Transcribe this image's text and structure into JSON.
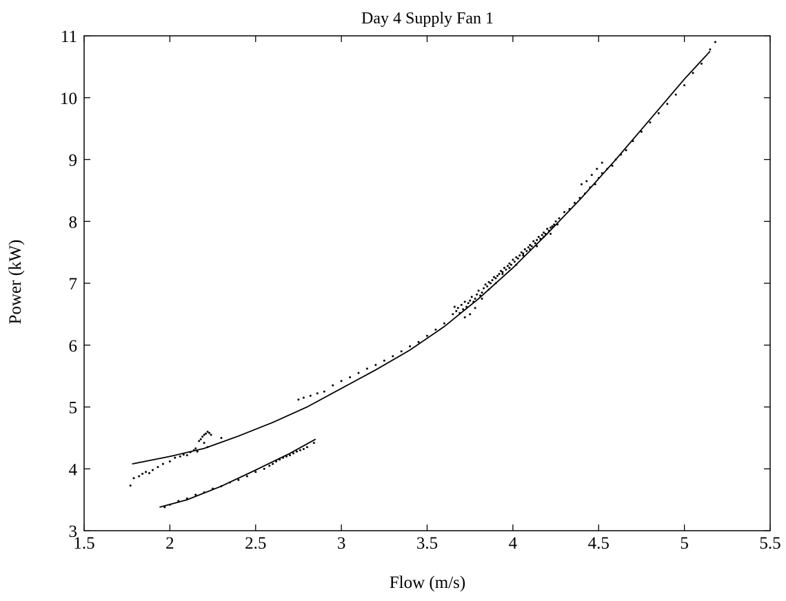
{
  "chart_data": {
    "type": "scatter",
    "title": "Day 4 Supply Fan 1",
    "xlabel": "Flow (m/s)",
    "ylabel": "Power (kW)",
    "xlim": [
      1.5,
      5.5
    ],
    "ylim": [
      3,
      11
    ],
    "xticks": [
      "1.5",
      "2",
      "2.5",
      "3",
      "3.5",
      "4",
      "4.5",
      "5",
      "5.5"
    ],
    "yticks": [
      "3",
      "4",
      "5",
      "6",
      "7",
      "8",
      "9",
      "10",
      "11"
    ],
    "grid": false,
    "legend": "none",
    "colors": {
      "line": "#000000",
      "points": "#000000",
      "background": "#ffffff"
    },
    "series": [
      {
        "kind": "line",
        "x": [
          1.78,
          2.0,
          2.2,
          2.4,
          2.6,
          2.8,
          3.0,
          3.2,
          3.4,
          3.6,
          3.8,
          4.0,
          4.2,
          4.4,
          4.6,
          4.8,
          5.0,
          5.15
        ],
        "y": [
          4.08,
          4.2,
          4.33,
          4.53,
          4.75,
          5.0,
          5.3,
          5.6,
          5.92,
          6.3,
          6.75,
          7.25,
          7.8,
          8.38,
          9.0,
          9.65,
          10.3,
          10.75
        ]
      },
      {
        "kind": "line",
        "x": [
          1.94,
          2.1,
          2.3,
          2.5,
          2.7,
          2.85
        ],
        "y": [
          3.38,
          3.5,
          3.72,
          3.98,
          4.25,
          4.48
        ]
      },
      {
        "kind": "scatter",
        "x": [
          1.77,
          1.79,
          1.82,
          1.84,
          1.86,
          1.88,
          1.9,
          1.93,
          1.96,
          2.0,
          2.03,
          2.06,
          2.08,
          2.1,
          2.12,
          2.14,
          2.15,
          2.16,
          2.17,
          2.18,
          2.19,
          2.2,
          2.21,
          2.22,
          2.23,
          2.24,
          2.3,
          2.2,
          2.22,
          2.75,
          2.78,
          2.82,
          2.86,
          2.9,
          2.95,
          3.0,
          3.05,
          3.1,
          3.15,
          3.2,
          3.25,
          3.3,
          3.35,
          3.4,
          3.45,
          3.5,
          3.55,
          3.6,
          3.65,
          3.66,
          3.67,
          3.68,
          3.69,
          3.7,
          3.71,
          3.72,
          3.73,
          3.74,
          3.75,
          3.76,
          3.77,
          3.78,
          3.79,
          3.8,
          3.81,
          3.82,
          3.83,
          3.84,
          3.85,
          3.86,
          3.87,
          3.88,
          3.89,
          3.9,
          3.91,
          3.92,
          3.93,
          3.94,
          3.95,
          3.96,
          3.97,
          3.98,
          3.99,
          4.0,
          4.01,
          4.02,
          4.03,
          4.04,
          4.05,
          4.06,
          4.07,
          4.08,
          4.09,
          4.1,
          4.11,
          4.12,
          4.13,
          4.14,
          4.15,
          4.16,
          4.17,
          4.18,
          4.19,
          4.2,
          4.21,
          4.22,
          4.23,
          4.24,
          4.25,
          4.27,
          4.3,
          4.33,
          4.36,
          4.39,
          4.42,
          4.45,
          4.48,
          4.5,
          4.52,
          4.55,
          4.58,
          4.6,
          4.63,
          4.66,
          4.7,
          4.75,
          4.8,
          4.85,
          4.9,
          4.95,
          5.0,
          5.05,
          5.1,
          5.15,
          5.18,
          3.72,
          3.75,
          3.78,
          3.82,
          3.86,
          3.9,
          3.94,
          3.98,
          4.02,
          4.06,
          4.1,
          4.14,
          4.18,
          4.22,
          4.26,
          4.4,
          4.43,
          4.46,
          4.49,
          4.52,
          1.97,
          2.0,
          2.05,
          2.1,
          2.15,
          2.2,
          2.25,
          2.3,
          2.35,
          2.4,
          2.45,
          2.5,
          2.55,
          2.58,
          2.6,
          2.62,
          2.64,
          2.66,
          2.68,
          2.7,
          2.72,
          2.74,
          2.76,
          2.78,
          2.8,
          2.84
        ],
        "y": [
          3.73,
          3.85,
          3.88,
          3.92,
          3.95,
          3.93,
          3.98,
          4.03,
          4.08,
          4.12,
          4.18,
          4.2,
          4.23,
          4.22,
          4.27,
          4.3,
          4.33,
          4.28,
          4.45,
          4.48,
          4.52,
          4.55,
          4.57,
          4.6,
          4.58,
          4.55,
          4.5,
          4.42,
          4.35,
          5.12,
          5.15,
          5.18,
          5.22,
          5.25,
          5.35,
          5.42,
          5.48,
          5.55,
          5.62,
          5.68,
          5.75,
          5.82,
          5.9,
          5.98,
          6.05,
          6.15,
          6.25,
          6.35,
          6.5,
          6.62,
          6.55,
          6.6,
          6.52,
          6.65,
          6.58,
          6.7,
          6.62,
          6.68,
          6.72,
          6.78,
          6.7,
          6.75,
          6.82,
          6.88,
          6.8,
          6.85,
          6.92,
          6.98,
          6.95,
          7.02,
          7.0,
          7.05,
          7.1,
          7.08,
          7.12,
          7.15,
          7.2,
          7.18,
          7.25,
          7.22,
          7.28,
          7.32,
          7.3,
          7.38,
          7.35,
          7.42,
          7.4,
          7.45,
          7.5,
          7.48,
          7.55,
          7.52,
          7.58,
          7.62,
          7.6,
          7.68,
          7.65,
          7.7,
          7.75,
          7.72,
          7.78,
          7.82,
          7.8,
          7.88,
          7.85,
          7.9,
          7.92,
          7.95,
          8.0,
          8.05,
          8.15,
          8.2,
          8.3,
          8.38,
          8.45,
          8.55,
          8.6,
          8.7,
          8.78,
          8.85,
          8.9,
          9.0,
          9.08,
          9.15,
          9.3,
          9.45,
          9.6,
          9.75,
          9.9,
          10.05,
          10.2,
          10.4,
          10.55,
          10.78,
          10.9,
          6.45,
          6.5,
          6.6,
          6.75,
          6.9,
          7.0,
          7.15,
          7.25,
          7.3,
          7.45,
          7.55,
          7.6,
          7.75,
          7.8,
          7.95,
          8.6,
          8.65,
          8.75,
          8.85,
          8.95,
          3.38,
          3.42,
          3.48,
          3.52,
          3.58,
          3.62,
          3.68,
          3.72,
          3.78,
          3.82,
          3.88,
          3.95,
          4.0,
          4.05,
          4.08,
          4.12,
          4.15,
          4.18,
          4.2,
          4.22,
          4.25,
          4.28,
          4.3,
          4.32,
          4.35,
          4.42
        ]
      }
    ]
  }
}
